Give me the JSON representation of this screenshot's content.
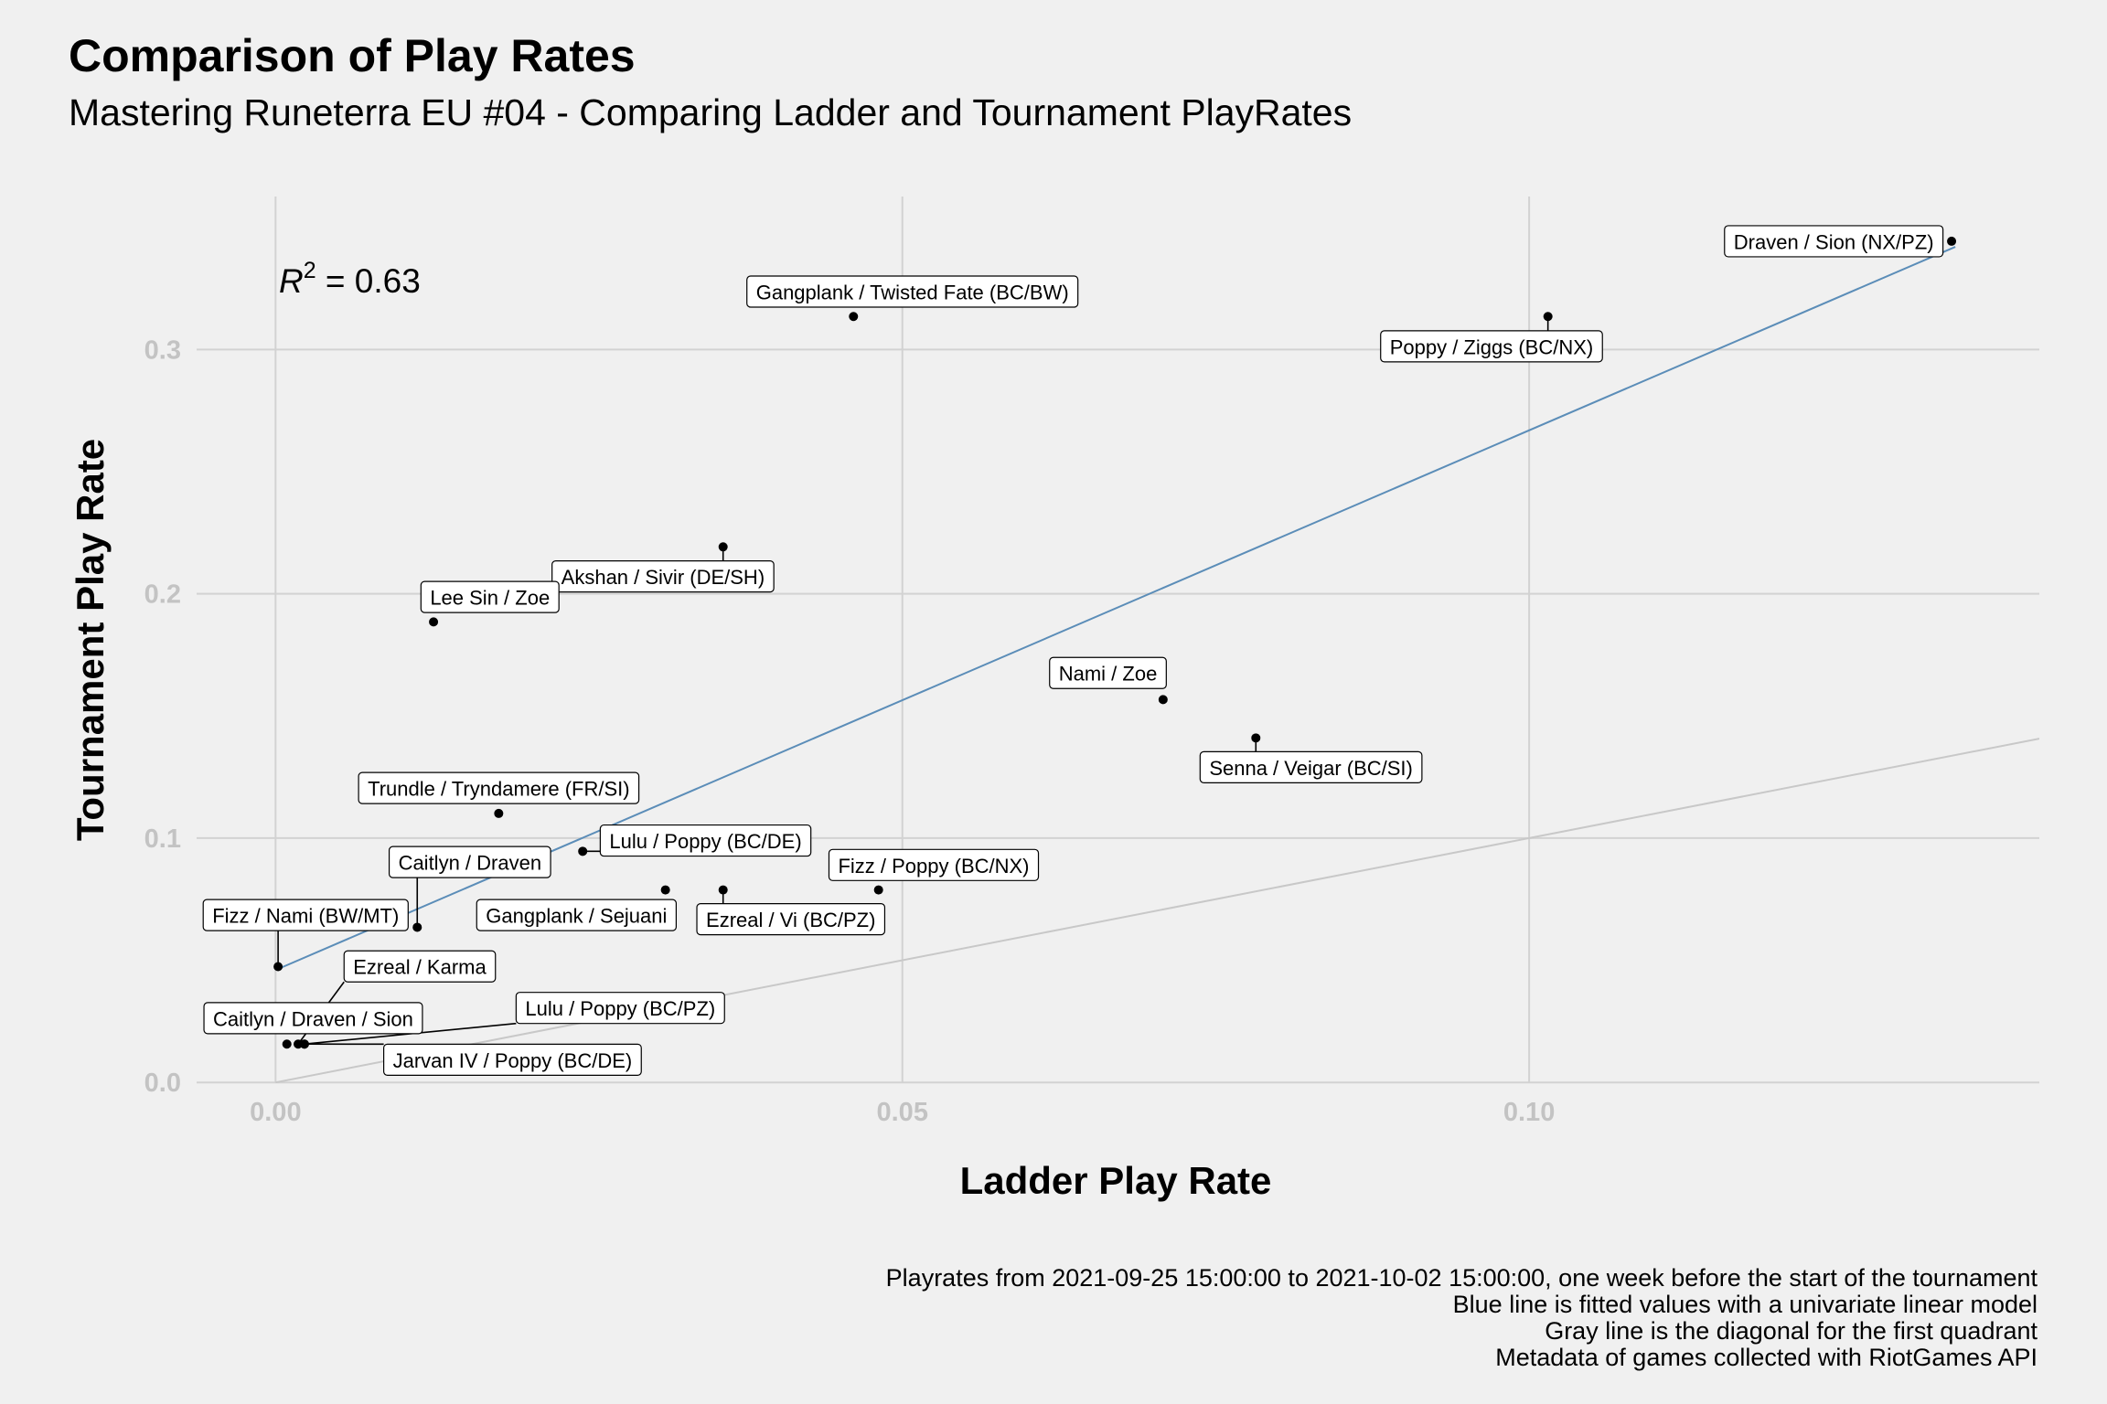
{
  "header": {
    "title": "Comparison of Play Rates",
    "subtitle": "Mastering Runeterra EU #04 - Comparing Ladder and Tournament PlayRates"
  },
  "caption": [
    "Playrates from 2021-09-25 15:00:00 to 2021-10-02 15:00:00, one week before the start of the tournament",
    "Blue line is fitted values with a univariate linear model",
    "Gray line is the diagonal for the first quadrant",
    "Metadata of games collected with RiotGames API"
  ],
  "chart_data": {
    "type": "scatter",
    "xlabel": "Ladder Play Rate",
    "ylabel": "Tournament Play Rate",
    "xlim": [
      -0.0063,
      0.1407
    ],
    "ylim": [
      -0.0003,
      0.3626
    ],
    "x_ticks": [
      0.0,
      0.05,
      0.1
    ],
    "x_tick_labels": [
      "0.00",
      "0.05",
      "0.10"
    ],
    "y_ticks": [
      0.0,
      0.1,
      0.2,
      0.3
    ],
    "y_tick_labels": [
      "0.0",
      "0.1",
      "0.2",
      "0.3"
    ],
    "grid": true,
    "annotation": {
      "r_squared_label": "R",
      "r_squared_exp": "2",
      "r_squared_value": " = 0.63"
    },
    "fit_line": {
      "color": "#5b8db8",
      "x": [
        0.0,
        0.134
      ],
      "y": [
        0.046,
        0.342
      ]
    },
    "diagonal_line": {
      "color": "#c8c8c8",
      "x": [
        0.0,
        0.1407
      ],
      "y": [
        0.0,
        0.1407
      ]
    },
    "points": [
      {
        "label": "Draven / Sion (NX/PZ)",
        "x": 0.1337,
        "y": 0.3443,
        "lx": 0.1243,
        "ly": 0.3443
      },
      {
        "label": "Gangplank / Twisted Fate (BC/BW)",
        "x": 0.0461,
        "y": 0.3135,
        "lx": 0.0508,
        "ly": 0.3237
      },
      {
        "label": "Poppy / Ziggs (BC/NX)",
        "x": 0.1015,
        "y": 0.3135,
        "lx": 0.097,
        "ly": 0.3013
      },
      {
        "label": "Akshan / Sivir (DE/SH)",
        "x": 0.0357,
        "y": 0.2192,
        "lx": 0.0309,
        "ly": 0.2071
      },
      {
        "label": "Lee Sin / Zoe",
        "x": 0.0126,
        "y": 0.1885,
        "lx": 0.0171,
        "ly": 0.1987
      },
      {
        "label": "Nami / Zoe",
        "x": 0.0708,
        "y": 0.1567,
        "lx": 0.0664,
        "ly": 0.1676
      },
      {
        "label": "Senna / Veigar (BC/SI)",
        "x": 0.0782,
        "y": 0.141,
        "lx": 0.0826,
        "ly": 0.129
      },
      {
        "label": "Trundle / Tryndamere (FR/SI)",
        "x": 0.0178,
        "y": 0.1101,
        "lx": 0.0178,
        "ly": 0.1205
      },
      {
        "label": "Lulu / Poppy (BC/DE)",
        "x": 0.0245,
        "y": 0.0946,
        "lx": 0.0343,
        "ly": 0.099
      },
      {
        "label": "Caitlyn / Draven",
        "x": 0.0113,
        "y": 0.0635,
        "lx": 0.0155,
        "ly": 0.0902
      },
      {
        "label": "Fizz / Poppy (BC/NX)",
        "x": 0.0481,
        "y": 0.0788,
        "lx": 0.0525,
        "ly": 0.089
      },
      {
        "label": "Gangplank / Sejuani",
        "x": 0.0311,
        "y": 0.0788,
        "lx": 0.024,
        "ly": 0.0685
      },
      {
        "label": "Ezreal / Vi (BC/PZ)",
        "x": 0.0357,
        "y": 0.0788,
        "lx": 0.0411,
        "ly": 0.0668
      },
      {
        "label": "Fizz / Nami (BW/MT)",
        "x": 0.0002,
        "y": 0.0474,
        "lx": 0.0024,
        "ly": 0.0685
      },
      {
        "label": "Ezreal / Karma",
        "x": 0.0018,
        "y": 0.0157,
        "lx": 0.0115,
        "ly": 0.0475
      },
      {
        "label": "Caitlyn / Draven / Sion",
        "x": 0.0009,
        "y": 0.0157,
        "lx": 0.003,
        "ly": 0.0263
      },
      {
        "label": "Lulu / Poppy (BC/PZ)",
        "x": 0.0023,
        "y": 0.0157,
        "lx": 0.0275,
        "ly": 0.0305
      },
      {
        "label": "Jarvan IV / Poppy (BC/DE)",
        "x": 0.0023,
        "y": 0.0157,
        "lx": 0.0189,
        "ly": 0.0093
      }
    ]
  }
}
